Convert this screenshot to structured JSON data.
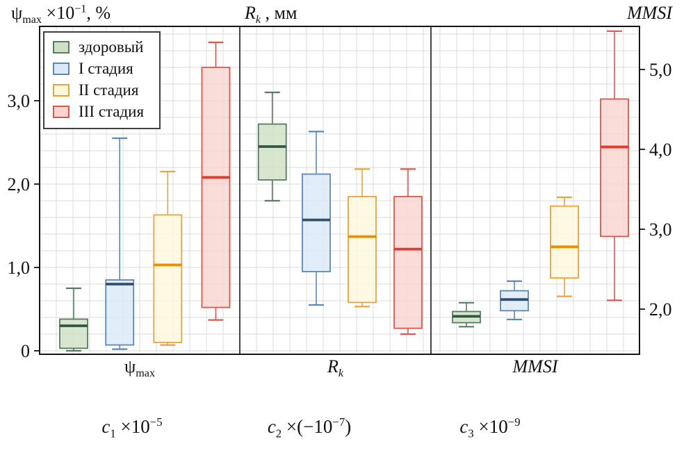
{
  "figure": {
    "title_left": {
      "sym": "ψ",
      "sub": "max",
      "mult": " ×10",
      "sup": "−1",
      "tail": ", %"
    },
    "title_middle": {
      "base": "R",
      "sub": "k",
      "tail": " , мм"
    },
    "title_right": "MMSI"
  },
  "axis_labels": {
    "panel1": {
      "sym": "ψ",
      "sub": "max"
    },
    "panel2": {
      "base": "R",
      "sub": "k"
    },
    "panel3": "MMSI"
  },
  "coef_labels": {
    "c1": {
      "base": "c",
      "sub": "1",
      "mult": " ×10",
      "sup": "−5",
      "tail": ""
    },
    "c2": {
      "base": "c",
      "sub": "2",
      "mult": " ×(−10",
      "sup": "−7",
      "tail": ")"
    },
    "c3": {
      "base": "c",
      "sub": "3",
      "mult": " ×10",
      "sup": "−9",
      "tail": ""
    }
  },
  "legend": {
    "items": [
      {
        "label": "здоровый"
      },
      {
        "label": "I стадия"
      },
      {
        "label": "II стадия"
      },
      {
        "label": "III стадия"
      }
    ]
  },
  "chart_data": {
    "type": "boxplot",
    "title": "Box plots of ψmax, Rk and MMSI by disease stage",
    "groups": [
      {
        "name": "здоровый",
        "fill": "#cfe0c4",
        "stroke": "#567d5e",
        "median": "#2f5741"
      },
      {
        "name": "I стадия",
        "fill": "#dbe9f8",
        "stroke": "#5d87b5",
        "median": "#33516e"
      },
      {
        "name": "II стадия",
        "fill": "#fdf8dd",
        "stroke": "#eaa23a",
        "median": "#f08c00"
      },
      {
        "name": "III стадия",
        "fill": "#f9d4cf",
        "stroke": "#d65850",
        "median": "#e23b2e"
      }
    ],
    "left_axis": {
      "label": "ψmax ×10⁻¹, %",
      "ticks": [
        {
          "value": 0,
          "label": "0"
        },
        {
          "value": 1,
          "label": "1,0"
        },
        {
          "value": 2,
          "label": "2,0"
        },
        {
          "value": 3,
          "label": "3,0"
        }
      ],
      "range": [
        -0.04,
        3.89
      ]
    },
    "right_axis": {
      "label": "MMSI",
      "ticks": [
        {
          "value": 2,
          "label": "2,0"
        },
        {
          "value": 3,
          "label": "3,0"
        },
        {
          "value": 4,
          "label": "4,0"
        },
        {
          "value": 5,
          "label": "5,0"
        }
      ],
      "range": [
        1.43,
        5.54
      ]
    },
    "panels": [
      {
        "metric": "ψmax",
        "axis": "left",
        "coefficient": "c₁ ×10⁻⁵",
        "boxes": [
          {
            "group": "здоровый",
            "low": 0.0,
            "q1": 0.03,
            "median": 0.3,
            "q3": 0.38,
            "high": 0.75
          },
          {
            "group": "I стадия",
            "low": 0.02,
            "q1": 0.07,
            "median": 0.8,
            "q3": 0.85,
            "high": 2.55
          },
          {
            "group": "II стадия",
            "low": 0.07,
            "q1": 0.1,
            "median": 1.03,
            "q3": 1.63,
            "high": 2.15
          },
          {
            "group": "III стадия",
            "low": 0.37,
            "q1": 0.52,
            "median": 2.08,
            "q3": 3.4,
            "high": 3.7
          }
        ]
      },
      {
        "metric": "Rk",
        "axis": "left",
        "coefficient": "c₂ ×(−10⁻⁷)",
        "boxes": [
          {
            "group": "здоровый",
            "low": 1.8,
            "q1": 2.05,
            "median": 2.45,
            "q3": 2.72,
            "high": 3.1
          },
          {
            "group": "I стадия",
            "low": 0.55,
            "q1": 0.95,
            "median": 1.57,
            "q3": 2.12,
            "high": 2.63
          },
          {
            "group": "II стадия",
            "low": 0.53,
            "q1": 0.58,
            "median": 1.37,
            "q3": 1.85,
            "high": 2.18
          },
          {
            "group": "III стадия",
            "low": 0.2,
            "q1": 0.27,
            "median": 1.22,
            "q3": 1.85,
            "high": 2.18
          }
        ]
      },
      {
        "metric": "MMSI",
        "axis": "right",
        "coefficient": "c₃ ×10⁻⁹",
        "boxes": [
          {
            "group": "здоровый",
            "low": 1.78,
            "q1": 1.83,
            "median": 1.91,
            "q3": 1.97,
            "high": 2.08
          },
          {
            "group": "I стадия",
            "low": 1.87,
            "q1": 1.98,
            "median": 2.12,
            "q3": 2.23,
            "high": 2.35
          },
          {
            "group": "II стадия",
            "low": 2.16,
            "q1": 2.39,
            "median": 2.78,
            "q3": 3.29,
            "high": 3.4
          },
          {
            "group": "III стадия",
            "low": 2.11,
            "q1": 2.91,
            "median": 4.03,
            "q3": 4.63,
            "high": 5.48
          }
        ]
      }
    ]
  }
}
